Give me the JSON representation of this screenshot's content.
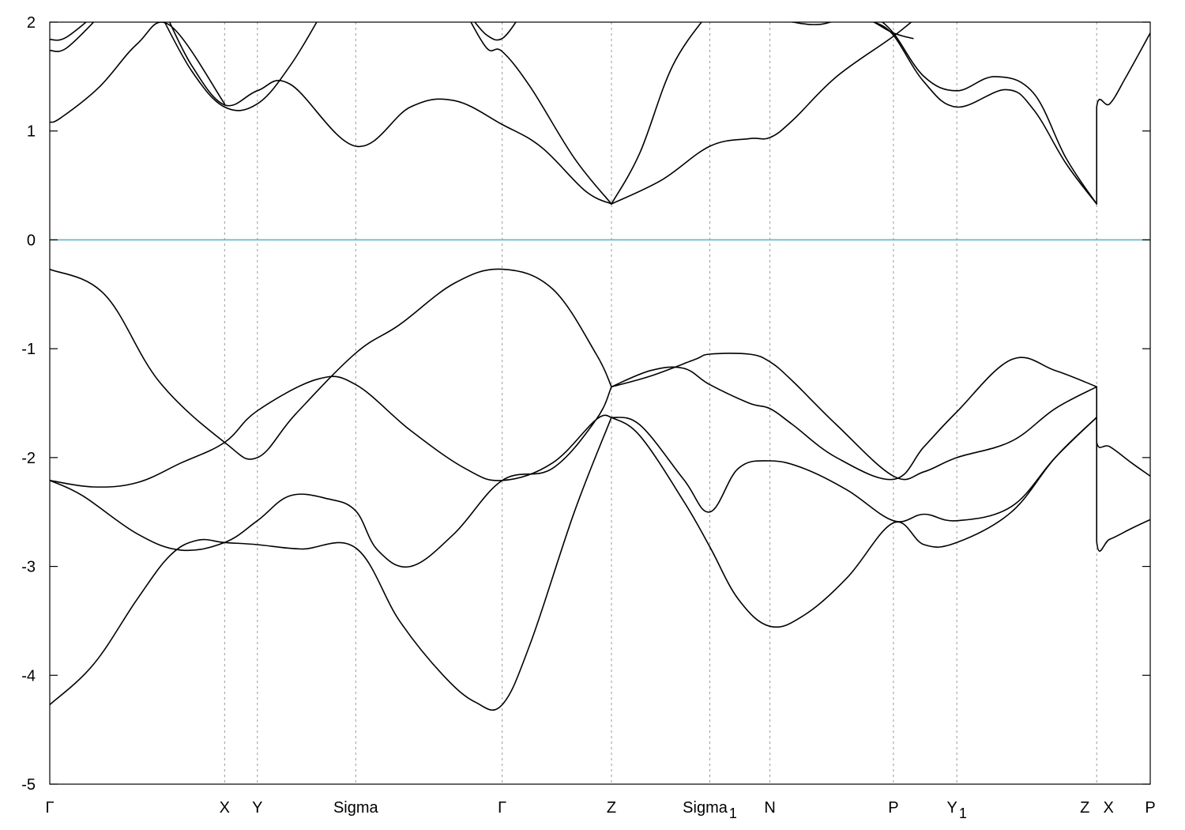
{
  "chart_data": {
    "type": "line",
    "title": "",
    "xlabel": "",
    "ylabel": "",
    "ylim": [
      -5,
      2
    ],
    "yticks": [
      2,
      1,
      0,
      -1,
      -2,
      -3,
      -4,
      -5
    ],
    "grid": "vertical dotted lines at high-symmetry points",
    "legend": "none",
    "fermi_level": {
      "value": 0,
      "color": "#5fb3c8"
    },
    "kpoints": [
      {
        "label": "Γ",
        "sub": "",
        "x": 0.0
      },
      {
        "label": "X",
        "sub": "",
        "x": 1.6
      },
      {
        "label": "Y",
        "sub": "",
        "x": 1.9
      },
      {
        "label": "Sigma",
        "sub": "",
        "x": 2.8
      },
      {
        "label": "Γ",
        "sub": "",
        "x": 4.14
      },
      {
        "label": "Z",
        "sub": "",
        "x": 5.14
      },
      {
        "label": "Sigma",
        "sub": "1",
        "x": 6.04
      },
      {
        "label": "N",
        "sub": "",
        "x": 6.59
      },
      {
        "label": "P",
        "sub": "",
        "x": 7.72
      },
      {
        "label": "Y",
        "sub": "1",
        "x": 8.3
      },
      {
        "label": "Z",
        "sub": "",
        "x": 9.58
      },
      {
        "label": "X",
        "sub": "",
        "x": 9.58
      },
      {
        "label": "P",
        "sub": "",
        "x": 10.07
      }
    ],
    "xrange": [
      0,
      10.07
    ],
    "series": [
      {
        "x": [
          0,
          0.5,
          1.0,
          1.6,
          1.9,
          2.25,
          2.8,
          3.2,
          3.7,
          4.14,
          4.6,
          5.0,
          5.14
        ],
        "y": [
          -0.27,
          -0.5,
          -1.3,
          -1.86,
          -2.0,
          -1.6,
          -1.04,
          -0.78,
          -0.4,
          -0.27,
          -0.45,
          -1.05,
          -1.35
        ]
      },
      {
        "x": [
          0,
          0.4,
          0.8,
          1.2,
          1.6,
          1.9,
          2.45,
          2.8,
          3.3,
          3.8,
          4.14,
          4.6,
          5.0,
          5.14
        ],
        "y": [
          -2.21,
          -2.27,
          -2.23,
          -2.05,
          -1.86,
          -1.57,
          -1.28,
          -1.33,
          -1.75,
          -2.1,
          -2.21,
          -2.05,
          -1.65,
          -1.63
        ]
      },
      {
        "x": [
          0,
          0.3,
          0.8,
          1.2,
          1.6,
          1.9,
          2.2,
          2.55,
          2.8,
          3.0,
          3.3,
          3.7,
          4.14,
          4.6,
          5.0,
          5.14
        ],
        "y": [
          -2.21,
          -2.35,
          -2.7,
          -2.85,
          -2.78,
          -2.58,
          -2.35,
          -2.38,
          -2.49,
          -2.85,
          -3.0,
          -2.7,
          -2.21,
          -2.1,
          -1.65,
          -1.35
        ]
      },
      {
        "x": [
          0,
          0.4,
          0.8,
          1.1,
          1.35,
          1.6,
          1.9,
          2.3,
          2.8,
          3.2,
          3.6,
          3.9,
          4.14,
          4.4,
          4.8,
          5.14
        ],
        "y": [
          -4.27,
          -3.9,
          -3.3,
          -2.9,
          -2.76,
          -2.78,
          -2.8,
          -2.84,
          -2.83,
          -3.5,
          -4.0,
          -4.25,
          -4.27,
          -3.7,
          -2.5,
          -1.63
        ]
      },
      {
        "x": [
          0,
          0.1,
          0.45,
          0.8,
          1.1,
          1.6
        ],
        "y": [
          1.08,
          1.12,
          1.4,
          1.8,
          1.97,
          1.25
        ]
      },
      {
        "x": [
          0,
          0.15,
          0.45
        ],
        "y": [
          1.74,
          1.76,
          2.05
        ]
      },
      {
        "x": [
          0,
          0.15,
          0.45
        ],
        "y": [
          1.84,
          1.86,
          2.1
        ]
      },
      {
        "x": [
          1.0,
          1.3,
          1.6,
          1.9,
          2.2,
          2.5
        ],
        "y": [
          2.1,
          1.55,
          1.22,
          1.25,
          1.6,
          2.1
        ]
      },
      {
        "x": [
          1.05,
          1.3,
          1.6,
          1.9,
          2.2,
          2.8,
          3.3,
          3.7,
          4.14,
          4.5,
          4.9,
          5.14
        ],
        "y": [
          2.1,
          1.6,
          1.24,
          1.37,
          1.43,
          0.86,
          1.22,
          1.28,
          1.06,
          0.85,
          0.45,
          0.33
        ]
      },
      {
        "x": [
          3.8,
          4.0,
          4.14,
          4.4,
          4.8,
          5.14
        ],
        "y": [
          2.1,
          1.76,
          1.73,
          1.4,
          0.75,
          0.33
        ]
      },
      {
        "x": [
          3.85,
          4.0,
          4.14,
          4.3
        ],
        "y": [
          2.05,
          1.88,
          1.85,
          2.05
        ]
      },
      {
        "x": [
          5.14,
          5.4,
          5.7,
          6.04
        ],
        "y": [
          0.33,
          0.8,
          1.6,
          2.1
        ]
      },
      {
        "x": [
          5.14,
          5.6,
          6.04,
          6.4,
          6.59,
          6.8,
          7.2,
          7.72,
          8.0
        ],
        "y": [
          0.33,
          0.55,
          0.86,
          0.93,
          0.94,
          1.1,
          1.5,
          1.87,
          2.1
        ]
      },
      {
        "x": [
          6.59,
          6.8,
          7.05,
          7.4,
          7.72,
          7.9
        ],
        "y": [
          2.05,
          2.0,
          1.98,
          2.05,
          1.9,
          1.85
        ]
      },
      {
        "x": [
          7.55,
          7.72,
          8.0,
          8.3,
          8.65,
          9.0,
          9.3,
          9.58
        ],
        "y": [
          2.05,
          1.9,
          1.5,
          1.37,
          1.5,
          1.35,
          0.75,
          0.33
        ]
      },
      {
        "x": [
          7.55,
          7.72,
          8.0,
          8.3,
          8.75,
          9.0,
          9.3,
          9.58
        ],
        "y": [
          2.0,
          1.88,
          1.45,
          1.22,
          1.38,
          1.2,
          0.7,
          0.33
        ]
      },
      {
        "x": [
          9.58,
          9.58,
          9.7,
          9.85,
          10.07
        ],
        "y": [
          0.33,
          1.22,
          1.25,
          1.5,
          1.9
        ]
      },
      {
        "x": [
          5.14,
          5.5,
          5.8,
          6.04,
          6.4,
          6.59,
          6.8,
          7.2,
          7.72,
          8.0,
          8.3,
          8.8,
          9.2,
          9.58
        ],
        "y": [
          -1.35,
          -1.2,
          -1.18,
          -1.33,
          -1.5,
          -1.55,
          -1.7,
          -2.0,
          -2.2,
          -1.9,
          -1.58,
          -1.1,
          -1.2,
          -1.35
        ]
      },
      {
        "x": [
          5.14,
          5.5,
          5.9,
          6.04,
          6.4,
          6.59,
          6.8,
          7.2,
          7.72,
          8.0,
          8.3,
          8.8,
          9.2,
          9.58
        ],
        "y": [
          -1.35,
          -1.25,
          -1.1,
          -1.05,
          -1.05,
          -1.12,
          -1.3,
          -1.7,
          -2.17,
          -2.13,
          -2.0,
          -1.85,
          -1.55,
          -1.35
        ]
      },
      {
        "x": [
          5.14,
          5.4,
          5.8,
          6.04,
          6.3,
          6.59,
          6.9,
          7.3,
          7.72,
          8.0,
          8.3,
          8.8,
          9.2,
          9.58
        ],
        "y": [
          -1.63,
          -1.7,
          -2.2,
          -2.5,
          -2.1,
          -2.03,
          -2.1,
          -2.3,
          -2.58,
          -2.52,
          -2.58,
          -2.45,
          -2.0,
          -1.63
        ]
      },
      {
        "x": [
          5.14,
          5.4,
          5.8,
          6.04,
          6.3,
          6.59,
          6.9,
          7.3,
          7.72,
          8.0,
          8.3,
          8.8,
          9.2,
          9.58
        ],
        "y": [
          -1.63,
          -1.8,
          -2.4,
          -2.82,
          -3.3,
          -3.55,
          -3.45,
          -3.1,
          -2.6,
          -2.8,
          -2.78,
          -2.5,
          -2.0,
          -1.63
        ]
      },
      {
        "x": [
          9.58,
          9.58,
          9.7,
          9.9,
          10.07
        ],
        "y": [
          -1.35,
          -1.86,
          -1.9,
          -2.05,
          -2.17
        ]
      },
      {
        "x": [
          9.58,
          9.58,
          9.7,
          9.9,
          10.07
        ],
        "y": [
          -1.63,
          -2.77,
          -2.75,
          -2.65,
          -2.57
        ]
      }
    ]
  }
}
